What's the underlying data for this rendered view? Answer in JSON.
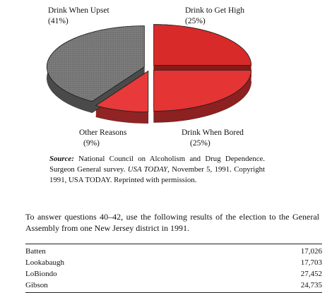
{
  "chart_data": {
    "type": "pie",
    "title": "",
    "slices": [
      {
        "label": "Drink to Get High",
        "value": 25,
        "display": "(25%)",
        "color": "#d92a2a"
      },
      {
        "label": "Drink When Bored",
        "value": 25,
        "display": "(25%)",
        "color": "#e43434"
      },
      {
        "label": "Other Reasons",
        "value": 9,
        "display": "(9%)",
        "color": "#e83a3a"
      },
      {
        "label": "Drink When Upset",
        "value": 41,
        "display": "(41%)",
        "color": "#8a8a8a"
      }
    ],
    "exploded": true,
    "three_d": true
  },
  "source": {
    "label": "Source:",
    "text_1": " National Council on Alcoholism and Drug Dependence. Surgeon General survey. ",
    "publication": "USA TODAY",
    "text_2": ", November 5, 1991. Copyright 1991, USA TODAY. Reprinted with permission."
  },
  "question": "To answer questions 40–42, use the following results of the election to the General Assembly from one New Jersey district in 1991.",
  "results": [
    {
      "name": "Batten",
      "votes": "17,026"
    },
    {
      "name": "Lookabaugh",
      "votes": "17,703"
    },
    {
      "name": "LoBiondo",
      "votes": "27,452"
    },
    {
      "name": "Gibson",
      "votes": "24,735"
    }
  ]
}
